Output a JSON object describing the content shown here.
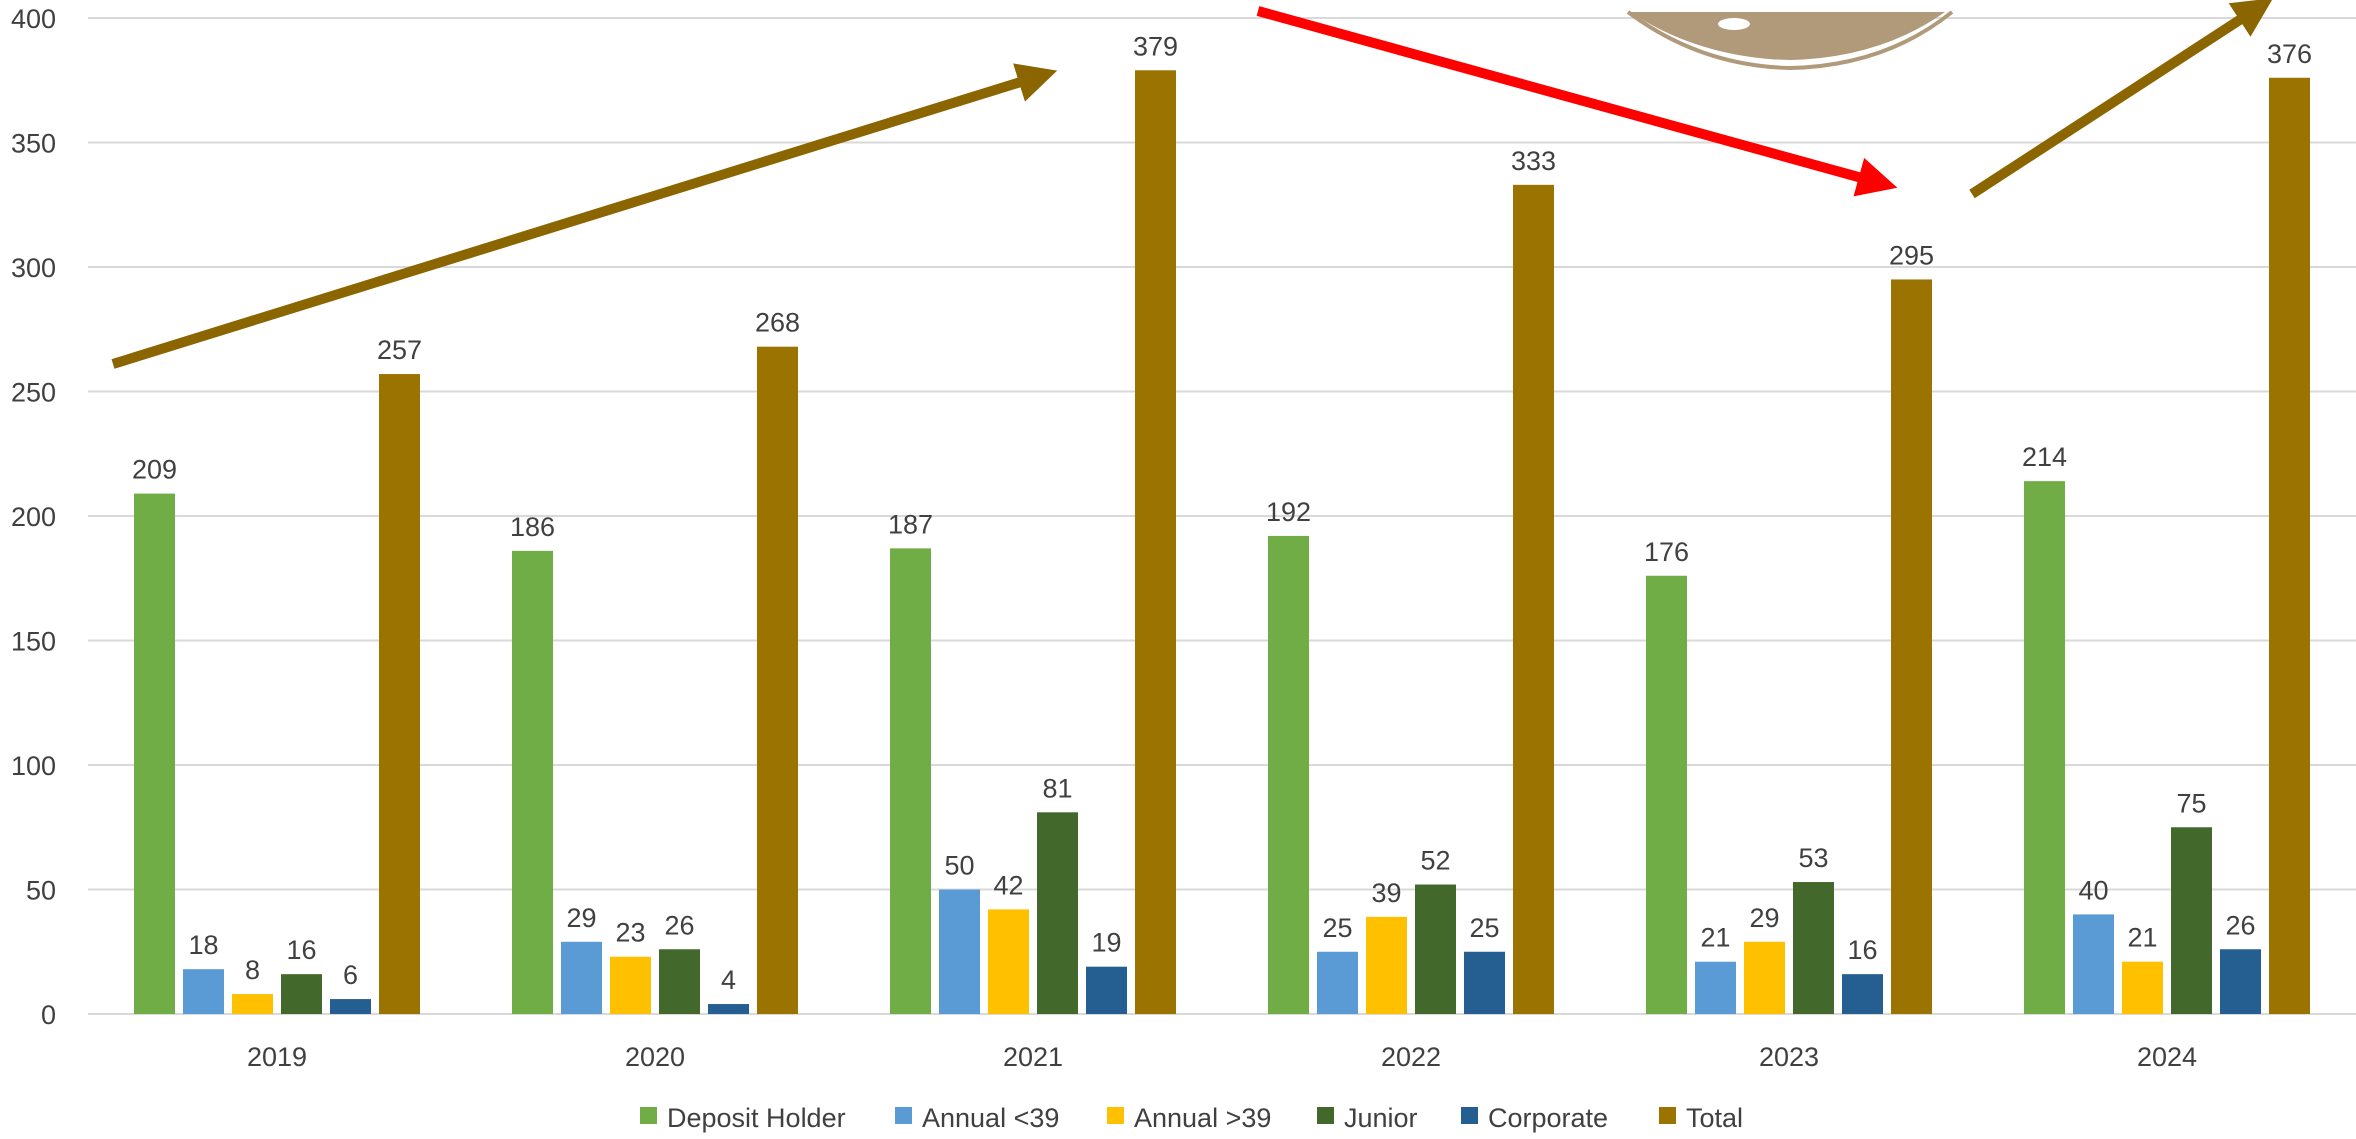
{
  "chart_data": {
    "type": "bar",
    "categories": [
      "2019",
      "2020",
      "2021",
      "2022",
      "2023",
      "2024"
    ],
    "series": [
      {
        "name": "Deposit Holder",
        "color": "#70AD47",
        "values": [
          209,
          186,
          187,
          192,
          176,
          214
        ]
      },
      {
        "name": "Annual <39",
        "color": "#5B9BD5",
        "values": [
          18,
          29,
          50,
          25,
          21,
          40
        ]
      },
      {
        "name": "Annual >39",
        "color": "#FFC000",
        "values": [
          8,
          23,
          42,
          39,
          29,
          21
        ]
      },
      {
        "name": "Junior",
        "color": "#43682B",
        "values": [
          16,
          26,
          81,
          52,
          53,
          75
        ]
      },
      {
        "name": "Corporate",
        "color": "#255E91",
        "values": [
          6,
          4,
          19,
          25,
          16,
          26
        ]
      },
      {
        "name": "Total",
        "color": "#9A7300",
        "values": [
          257,
          268,
          379,
          333,
          295,
          376
        ]
      }
    ],
    "ylim": [
      0,
      400
    ],
    "yticks": [
      0,
      50,
      100,
      150,
      200,
      250,
      300,
      350,
      400
    ],
    "grid": true,
    "legend": "bottom",
    "annotations": [
      {
        "type": "trend-arrow",
        "color": "#8B6500",
        "direction": "up",
        "from_year": "2019",
        "to_year": "2021"
      },
      {
        "type": "trend-arrow",
        "color": "#FF0000",
        "direction": "down",
        "from_year": "2021",
        "to_year": "2023"
      },
      {
        "type": "trend-arrow",
        "color": "#8B6500",
        "direction": "up",
        "from_year": "2023",
        "to_year": "2024"
      }
    ]
  },
  "colors": {
    "grid": "#D9D9D9",
    "text": "#404040",
    "logo": "#B09A7A"
  },
  "decoration": {
    "logo_icon": "club-logo-fragment"
  }
}
